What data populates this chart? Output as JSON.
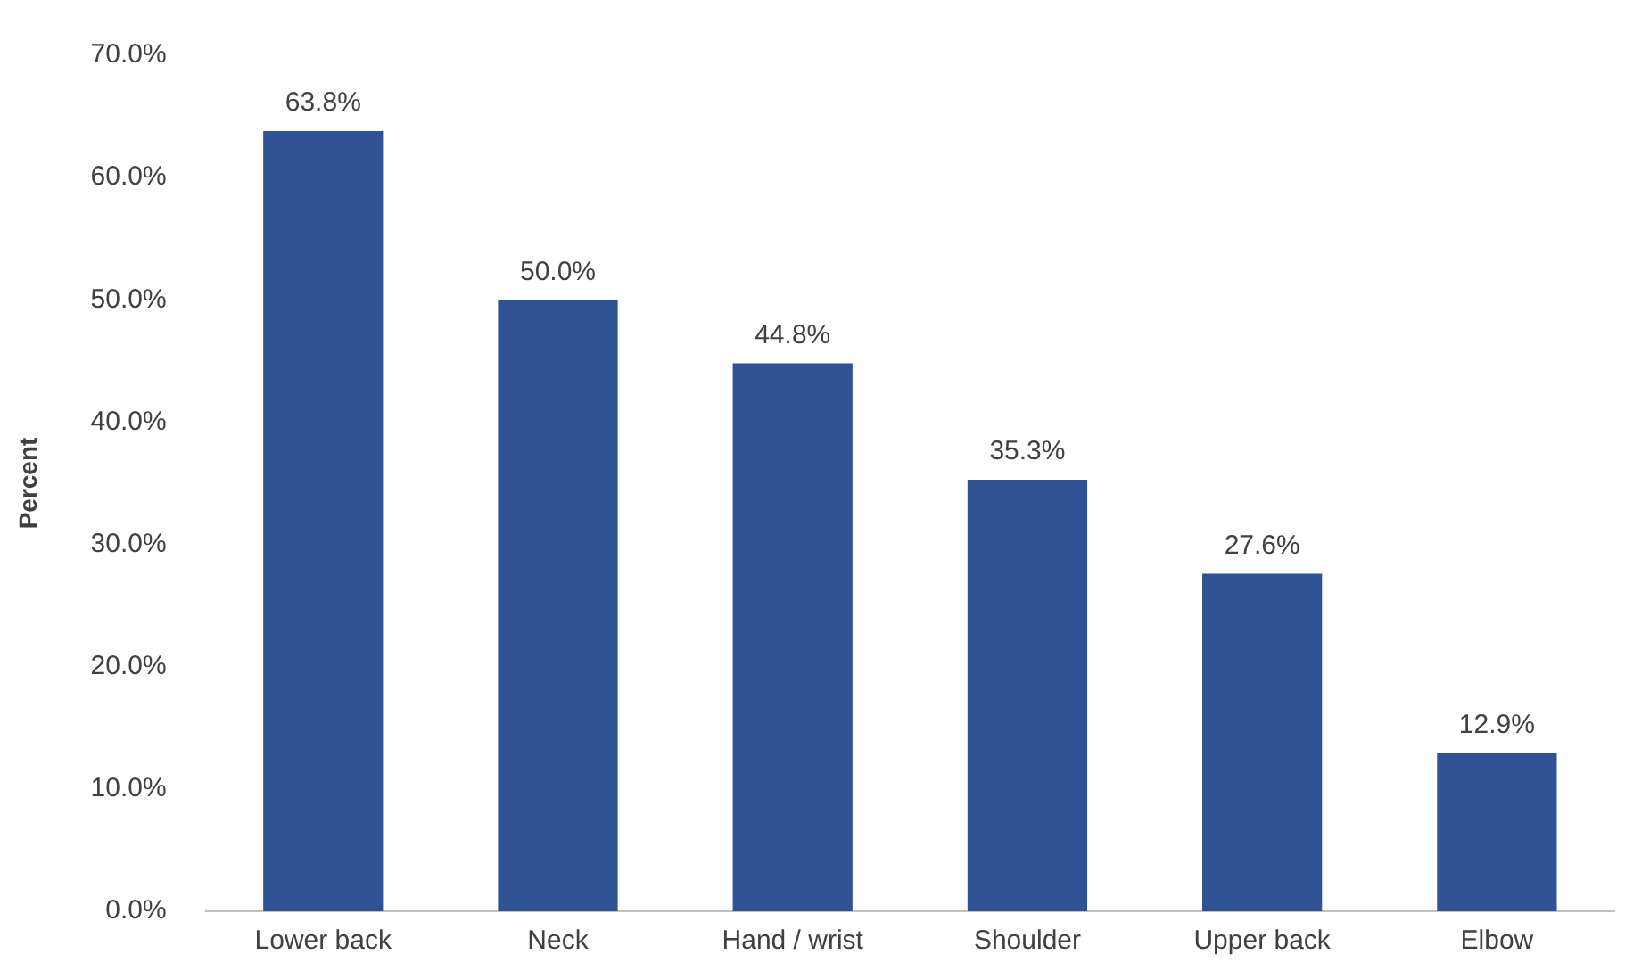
{
  "chart_data": {
    "type": "bar",
    "ylabel": "Percent",
    "categories": [
      "Lower back",
      "Neck",
      "Hand / wrist",
      "Shoulder",
      "Upper back",
      "Elbow"
    ],
    "values": [
      63.8,
      50.0,
      44.8,
      35.3,
      27.6,
      12.9
    ],
    "value_labels": [
      "63.8%",
      "50.0%",
      "44.8%",
      "35.3%",
      "27.6%",
      "12.9%"
    ],
    "color": "#2e5294",
    "ylim": [
      0,
      70
    ],
    "yticks": [
      {
        "value": 0,
        "label": "0.0%"
      },
      {
        "value": 10,
        "label": "10.0%"
      },
      {
        "value": 20,
        "label": "20.0%"
      },
      {
        "value": 30,
        "label": "30.0%"
      },
      {
        "value": 40,
        "label": "40.0%"
      },
      {
        "value": 50,
        "label": "50.0%"
      },
      {
        "value": 60,
        "label": "60.0%"
      },
      {
        "value": 70,
        "label": "70.0%"
      }
    ],
    "grid": false,
    "legend": false
  }
}
